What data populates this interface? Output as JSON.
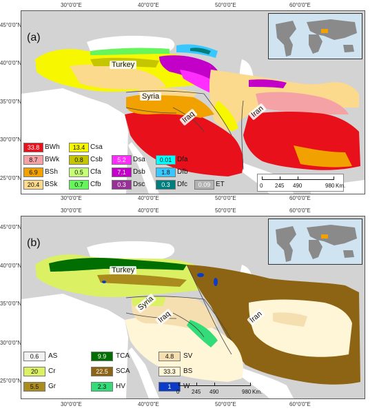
{
  "axes": {
    "lon_labels": [
      "30°0'0\"E",
      "40°0'0\"E",
      "50°0'0\"E",
      "60°0'0\"E"
    ],
    "lat_labels_a": [
      "45°0'0\"N",
      "40°0'0\"N",
      "35°0'0\"N",
      "30°0'0\"N",
      "25°0'0\"N"
    ],
    "lat_labels_b": [
      "45°0'0\"N",
      "40°0'0\"N",
      "35°0'0\"N",
      "30°0'0\"N",
      "25°0'0\"N"
    ]
  },
  "panel_a": {
    "tag": "(a)",
    "countries": {
      "turkey": "Turkey",
      "syria": "Syria",
      "iraq": "Iraq",
      "iran": "Iran"
    },
    "legend": [
      {
        "value": "33.8",
        "code": "BWh",
        "color": "#e8101a"
      },
      {
        "value": "8.7",
        "code": "BWk",
        "color": "#f4a2a5"
      },
      {
        "value": "6.9",
        "code": "BSh",
        "color": "#f2a200"
      },
      {
        "value": "20.4",
        "code": "BSk",
        "color": "#fbd98d"
      },
      {
        "value": "13.4",
        "code": "Csa",
        "color": "#f7f700"
      },
      {
        "value": "0.8",
        "code": "Csb",
        "color": "#c5c600"
      },
      {
        "value": "0.5",
        "code": "Cfa",
        "color": "#c8ff78"
      },
      {
        "value": "0.7",
        "code": "Cfb",
        "color": "#66f55a"
      },
      {
        "value": "5.2",
        "code": "Dsa",
        "color": "#ff2eff"
      },
      {
        "value": "7.1",
        "code": "Dsb",
        "color": "#c200c8"
      },
      {
        "value": "0.3",
        "code": "Dsc",
        "color": "#963296"
      },
      {
        "value": "0.01",
        "code": "Dfa",
        "color": "#00ffff"
      },
      {
        "value": "1.8",
        "code": "Dfb",
        "color": "#38c8ff"
      },
      {
        "value": "0.3",
        "code": "Dfc",
        "color": "#007d7d"
      },
      {
        "value": "0.09",
        "code": "ET",
        "color": "#b2b2b2"
      }
    ],
    "scale": {
      "ticks": [
        "0",
        "245",
        "490",
        "980"
      ],
      "unit": "Km."
    }
  },
  "panel_b": {
    "tag": "(b)",
    "countries": {
      "turkey": "Turkey",
      "syria": "Syria",
      "iraq": "Iraq",
      "iran": "Iran"
    },
    "legend": [
      {
        "value": "0.6",
        "code": "AS",
        "color": "#f2f2f2"
      },
      {
        "value": "20",
        "code": "Cr",
        "color": "#dcf064"
      },
      {
        "value": "5.5",
        "code": "Gr",
        "color": "#aa8c1e"
      },
      {
        "value": "9.9",
        "code": "TCA",
        "color": "#006e00"
      },
      {
        "value": "22.5",
        "code": "SCA",
        "color": "#8c6414"
      },
      {
        "value": "2.3",
        "code": "HV",
        "color": "#32dc78"
      },
      {
        "value": "4.8",
        "code": "SV",
        "color": "#f5deb0"
      },
      {
        "value": "33.3",
        "code": "BS",
        "color": "#fff5d7"
      },
      {
        "value": "1",
        "code": "W",
        "color": "#0a3cc8"
      }
    ],
    "scale": {
      "ticks": [
        "0",
        "245",
        "490",
        "980"
      ],
      "unit": "Km."
    }
  },
  "colors": {
    "land_bg": "#d3d3d3",
    "sea": "#ffffff",
    "inset_sea": "#cfe3f1",
    "inset_land": "#8a8a8a",
    "highlight": "#f2a200"
  }
}
